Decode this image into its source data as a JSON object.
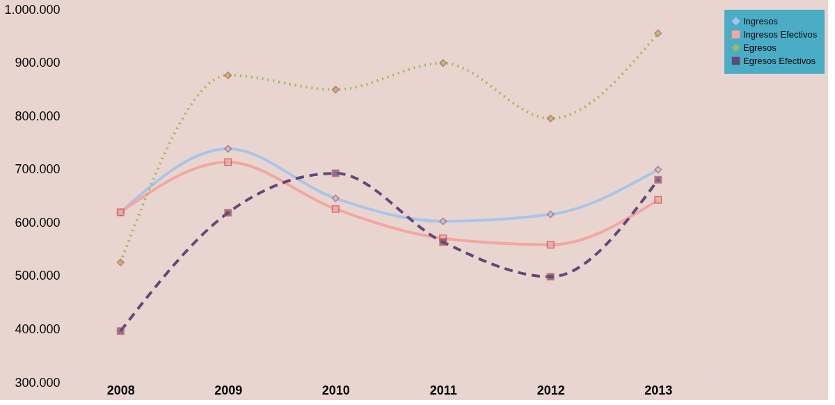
{
  "chart_data": {
    "type": "line",
    "categories": [
      "2008",
      "2009",
      "2010",
      "2011",
      "2012",
      "2013"
    ],
    "ylim": [
      300000,
      1000000
    ],
    "yticks": [
      {
        "value": 300000,
        "label": "300.000"
      },
      {
        "value": 400000,
        "label": "400.000"
      },
      {
        "value": 500000,
        "label": "500.000"
      },
      {
        "value": 600000,
        "label": "600.000"
      },
      {
        "value": 700000,
        "label": "700.000"
      },
      {
        "value": 800000,
        "label": "800.000"
      },
      {
        "value": 900000,
        "label": "900.000"
      },
      {
        "value": 1000000,
        "label": "1.000.000"
      }
    ],
    "legend": "right",
    "grid": false,
    "series": [
      {
        "name": "Ingresos",
        "color": "#a9c4eb",
        "marker": "diamond",
        "line_style": "solid",
        "values": [
          620000,
          739000,
          646000,
          603000,
          616000,
          700000
        ]
      },
      {
        "name": "Ingresos Efectivos",
        "color": "#f4a6a0",
        "marker": "square",
        "line_style": "solid",
        "values": [
          620000,
          714000,
          626000,
          571000,
          559000,
          643000
        ]
      },
      {
        "name": "Egresos",
        "color": "#9bbb59",
        "marker": "diamond",
        "line_style": "dotted",
        "values": [
          526000,
          877000,
          850000,
          900000,
          796000,
          956000
        ]
      },
      {
        "name": "Egresos Efectivos",
        "color": "#60497a",
        "marker": "square",
        "line_style": "dashed",
        "values": [
          397000,
          619000,
          693000,
          564000,
          499000,
          681000
        ]
      }
    ]
  }
}
